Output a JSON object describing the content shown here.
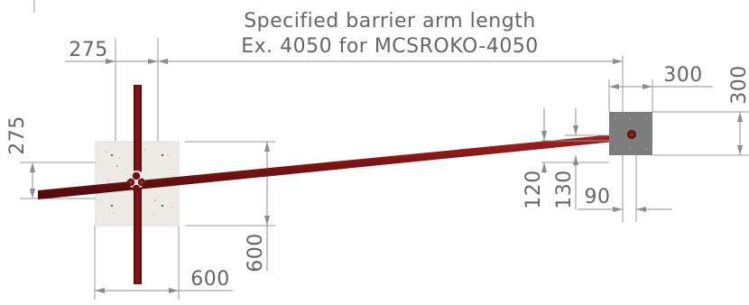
{
  "title_line_1": "Specified barrier arm length",
  "title_line_2": "Ex. 4050 for MCSROKO-4050",
  "dimensions": {
    "left_plate_width_top": "275",
    "left_plate_height_side": "275",
    "left_base_width": "600",
    "left_base_height": "600",
    "right_plate_width": "300",
    "right_plate_height": "300",
    "right_offset_120": "120",
    "right_offset_130": "130",
    "right_offset_90": "90"
  },
  "colors": {
    "arm": "#7a1414",
    "arm_dark": "#4e0b0b",
    "left_base": "#eeeae6",
    "right_base": "#7d7d7d",
    "dim_lines": "#8c8c8c",
    "text": "#666666"
  }
}
